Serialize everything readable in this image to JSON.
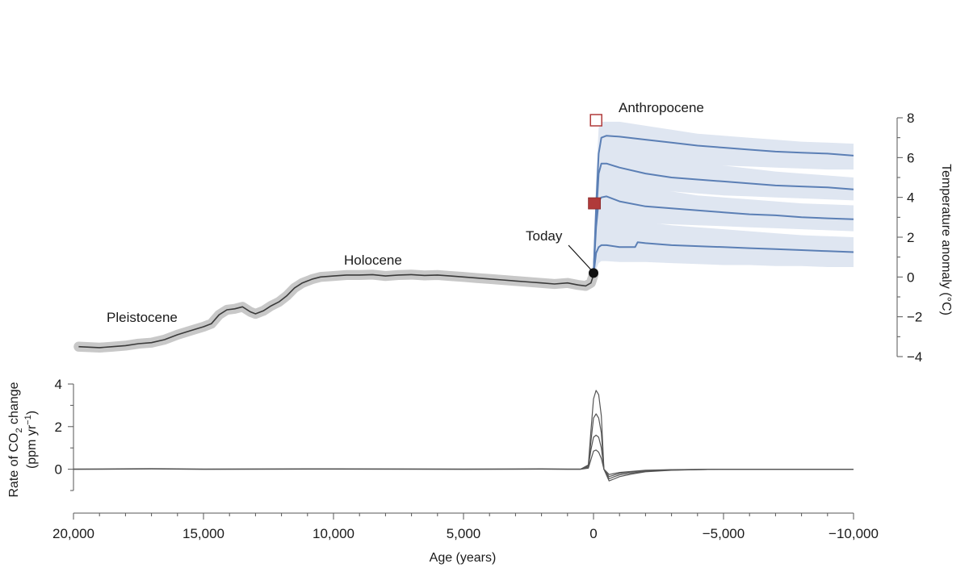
{
  "chart_data": {
    "type": "line",
    "xlabel": "Age (years)",
    "x_ticks": [
      20000,
      15000,
      10000,
      5000,
      0,
      -5000,
      -10000
    ],
    "x_tick_labels": [
      "20,000",
      "15,000",
      "10,000",
      "5,000",
      "0",
      "−5,000",
      "−10,000"
    ],
    "xlim": [
      20000,
      -10000
    ],
    "annotations": [
      "Pleistocene",
      "Holocene",
      "Today",
      "Anthropocene"
    ],
    "colors": {
      "history": "#3a3a3a",
      "history_band": "#c8c8c8",
      "projection": "#5b7fb5",
      "projection_band": "#dfe6f1",
      "marker_square": "#b03a3a",
      "co2": "#555555"
    },
    "temperature": {
      "ylabel": "Temperature anomaly (°C)",
      "ylim": [
        -4,
        8
      ],
      "y_ticks": [
        -4,
        -2,
        0,
        2,
        4,
        6,
        8
      ],
      "y_tick_labels": [
        "−4",
        "−2",
        "0",
        "2",
        "4",
        "6",
        "8"
      ],
      "history": {
        "x": [
          19800,
          19000,
          18500,
          18000,
          17500,
          17000,
          16500,
          16000,
          15500,
          15000,
          14700,
          14400,
          14100,
          13800,
          13500,
          13200,
          13000,
          12700,
          12400,
          12100,
          11800,
          11500,
          11200,
          10800,
          10500,
          10000,
          9500,
          9000,
          8500,
          8000,
          7500,
          7000,
          6500,
          6000,
          5500,
          5000,
          4500,
          4000,
          3500,
          3000,
          2500,
          2000,
          1500,
          1000,
          600,
          300,
          100,
          0
        ],
        "y": [
          -3.5,
          -3.55,
          -3.5,
          -3.45,
          -3.35,
          -3.3,
          -3.15,
          -2.9,
          -2.7,
          -2.5,
          -2.35,
          -1.9,
          -1.65,
          -1.6,
          -1.5,
          -1.75,
          -1.85,
          -1.7,
          -1.45,
          -1.25,
          -0.95,
          -0.55,
          -0.3,
          -0.1,
          0.0,
          0.05,
          0.1,
          0.1,
          0.12,
          0.05,
          0.1,
          0.12,
          0.08,
          0.1,
          0.05,
          0.0,
          -0.05,
          -0.1,
          -0.15,
          -0.2,
          -0.25,
          -0.3,
          -0.35,
          -0.3,
          -0.4,
          -0.45,
          -0.3,
          0.1
        ],
        "band": 0.25
      },
      "projections": [
        {
          "x": [
            0,
            -100,
            -200,
            -300,
            -500,
            -1000,
            -2000,
            -3000,
            -4000,
            -5000,
            -6000,
            -7000,
            -8000,
            -9000,
            -10000
          ],
          "y": [
            0.1,
            3.5,
            6.2,
            7.0,
            7.1,
            7.05,
            6.9,
            6.75,
            6.6,
            6.5,
            6.4,
            6.3,
            6.25,
            6.2,
            6.1
          ],
          "band_low": [
            0.1,
            2.0,
            4.5,
            5.8,
            6.0,
            6.0,
            5.9,
            5.8,
            5.7,
            5.6,
            5.55,
            5.5,
            5.45,
            5.4,
            5.4
          ],
          "band_high": [
            0.1,
            5.0,
            7.5,
            7.8,
            7.8,
            7.8,
            7.6,
            7.4,
            7.2,
            7.1,
            7.0,
            6.9,
            6.8,
            6.75,
            6.7
          ]
        },
        {
          "x": [
            0,
            -100,
            -200,
            -300,
            -500,
            -1000,
            -2000,
            -3000,
            -4000,
            -5000,
            -6000,
            -7000,
            -8000,
            -9000,
            -10000
          ],
          "y": [
            0.1,
            3.0,
            5.2,
            5.7,
            5.7,
            5.5,
            5.2,
            5.0,
            4.9,
            4.8,
            4.7,
            4.6,
            4.55,
            4.5,
            4.4
          ],
          "band_low": [
            0.1,
            1.8,
            4.0,
            4.5,
            4.6,
            4.5,
            4.4,
            4.3,
            4.2,
            4.1,
            4.05,
            4.0,
            3.95,
            3.9,
            3.85
          ],
          "band_high": [
            0.1,
            4.0,
            6.3,
            6.8,
            6.8,
            6.6,
            6.2,
            6.0,
            5.8,
            5.6,
            5.45,
            5.3,
            5.2,
            5.1,
            5.0
          ]
        },
        {
          "x": [
            0,
            -100,
            -200,
            -300,
            -500,
            -1000,
            -2000,
            -3000,
            -4000,
            -5000,
            -6000,
            -7000,
            -8000,
            -9000,
            -10000
          ],
          "y": [
            0.1,
            2.5,
            3.8,
            4.0,
            4.05,
            3.8,
            3.55,
            3.45,
            3.35,
            3.25,
            3.15,
            3.1,
            3.0,
            2.95,
            2.9
          ],
          "band_low": [
            0.1,
            1.2,
            2.6,
            2.9,
            2.9,
            2.8,
            2.7,
            2.65,
            2.6,
            2.55,
            2.5,
            2.45,
            2.4,
            2.35,
            2.3
          ],
          "band_high": [
            0.1,
            3.6,
            5.0,
            5.2,
            5.2,
            4.9,
            4.5,
            4.3,
            4.1,
            4.0,
            3.9,
            3.8,
            3.7,
            3.65,
            3.6
          ]
        },
        {
          "x": [
            0,
            -100,
            -200,
            -300,
            -500,
            -1000,
            -1600,
            -1700,
            -2000,
            -3000,
            -4000,
            -5000,
            -6000,
            -7000,
            -8000,
            -9000,
            -10000
          ],
          "y": [
            0.1,
            1.2,
            1.5,
            1.6,
            1.6,
            1.5,
            1.5,
            1.75,
            1.7,
            1.6,
            1.55,
            1.5,
            1.45,
            1.4,
            1.35,
            1.3,
            1.25
          ],
          "band_low": [
            0.1,
            0.4,
            0.7,
            0.8,
            0.8,
            0.75,
            0.75,
            0.75,
            0.75,
            0.7,
            0.65,
            0.6,
            0.6,
            0.55,
            0.55,
            0.5,
            0.5
          ],
          "band_high": [
            0.1,
            2.6,
            3.0,
            3.1,
            3.1,
            2.9,
            2.9,
            2.75,
            2.75,
            2.6,
            2.5,
            2.4,
            2.3,
            2.2,
            2.1,
            2.05,
            2.0
          ]
        }
      ],
      "markers": {
        "today": {
          "x": 0,
          "y": 0.2
        },
        "filled_square": {
          "x": -50,
          "y": 3.7
        },
        "open_square": {
          "x": -100,
          "y": 8.0
        }
      }
    },
    "co2_rate": {
      "ylabel_prefix": "Rate of CO",
      "ylabel_sub": "2",
      "ylabel_suffix": " change",
      "ylabel_units": "(ppm yr",
      "ylabel_units_sup": "−1",
      "ylabel_units_end": ")",
      "ylim": [
        -1,
        4
      ],
      "y_ticks": [
        0,
        2,
        4
      ],
      "y_tick_labels": [
        "0",
        "2",
        "4"
      ],
      "baseline": {
        "x": [
          20000,
          17000,
          15000,
          10000,
          5000,
          2000,
          1000,
          500
        ],
        "y": [
          0.0,
          0.02,
          0.0,
          0.01,
          0.0,
          0.01,
          0.0,
          0.0
        ]
      },
      "pulses": [
        {
          "x": [
            500,
            200,
            100,
            0,
            -100,
            -200,
            -300,
            -400,
            -600,
            -800,
            -1000,
            -1500,
            -2000,
            -3000,
            -4000,
            -5000,
            -10000
          ],
          "y": [
            0.0,
            0.2,
            1.8,
            3.3,
            3.7,
            3.5,
            2.5,
            0.0,
            -0.55,
            -0.45,
            -0.35,
            -0.22,
            -0.12,
            -0.05,
            -0.02,
            0.0,
            0.0
          ]
        },
        {
          "x": [
            500,
            200,
            100,
            0,
            -100,
            -200,
            -300,
            -400,
            -600,
            -800,
            -1000,
            -1500,
            -2000,
            -3000,
            -4000,
            -5000,
            -10000
          ],
          "y": [
            0.0,
            0.15,
            1.3,
            2.4,
            2.6,
            2.4,
            1.7,
            0.0,
            -0.45,
            -0.35,
            -0.27,
            -0.17,
            -0.1,
            -0.04,
            -0.02,
            0.0,
            0.0
          ]
        },
        {
          "x": [
            500,
            200,
            100,
            0,
            -100,
            -200,
            -300,
            -400,
            -600,
            -800,
            -1000,
            -1500,
            -2000,
            -3000,
            -4000,
            -5000,
            -10000
          ],
          "y": [
            0.0,
            0.1,
            0.9,
            1.5,
            1.6,
            1.5,
            1.0,
            0.0,
            -0.35,
            -0.27,
            -0.2,
            -0.12,
            -0.07,
            -0.03,
            -0.01,
            0.0,
            0.0
          ]
        },
        {
          "x": [
            500,
            200,
            100,
            0,
            -100,
            -200,
            -300,
            -400,
            -600,
            -800,
            -1000,
            -1500,
            -2000,
            -3000,
            -4000,
            -5000,
            -10000
          ],
          "y": [
            0.0,
            0.05,
            0.45,
            0.85,
            0.9,
            0.8,
            0.5,
            0.0,
            -0.25,
            -0.2,
            -0.15,
            -0.1,
            -0.05,
            -0.02,
            -0.01,
            0.0,
            0.0
          ]
        }
      ]
    }
  }
}
